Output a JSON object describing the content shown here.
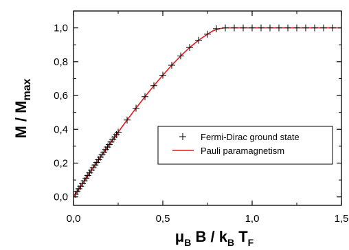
{
  "chart_data": {
    "type": "line",
    "xlabel_parts": {
      "mu": "μ",
      "sub_B": "B",
      "mid": " B / k",
      "sub_B2": "B",
      "T": " T",
      "sub_F": "F"
    },
    "ylabel_parts": {
      "main": "M / M",
      "sub": "max"
    },
    "xlim": [
      0,
      1.5
    ],
    "ylim": [
      -0.05,
      1.1
    ],
    "xticks": [
      {
        "v": 0.0,
        "label": "0,0"
      },
      {
        "v": 0.5,
        "label": "0,5"
      },
      {
        "v": 1.0,
        "label": "1,0"
      },
      {
        "v": 1.5,
        "label": "1,5"
      }
    ],
    "yticks": [
      {
        "v": 0.0,
        "label": "0,0"
      },
      {
        "v": 0.2,
        "label": "0,2"
      },
      {
        "v": 0.4,
        "label": "0,4"
      },
      {
        "v": 0.6,
        "label": "0,6"
      },
      {
        "v": 0.8,
        "label": "0,8"
      },
      {
        "v": 1.0,
        "label": "1,0"
      }
    ],
    "legend_position": "lower-right",
    "series": [
      {
        "name": "Fermi-Dirac ground state",
        "marker": "plus",
        "color": "#000000",
        "x": [
          0.0,
          0.01,
          0.02,
          0.03,
          0.04,
          0.05,
          0.06,
          0.07,
          0.08,
          0.09,
          0.1,
          0.11,
          0.12,
          0.13,
          0.14,
          0.15,
          0.16,
          0.17,
          0.18,
          0.19,
          0.2,
          0.21,
          0.22,
          0.23,
          0.24,
          0.25,
          0.3,
          0.35,
          0.4,
          0.45,
          0.5,
          0.55,
          0.6,
          0.65,
          0.7,
          0.75,
          0.8,
          0.85,
          0.9,
          0.95,
          1.0,
          1.05,
          1.1,
          1.15,
          1.2,
          1.25,
          1.3,
          1.35,
          1.4,
          1.45,
          1.5
        ],
        "y": [
          0.0,
          0.016,
          0.032,
          0.048,
          0.063,
          0.079,
          0.095,
          0.111,
          0.127,
          0.142,
          0.158,
          0.173,
          0.189,
          0.204,
          0.22,
          0.235,
          0.25,
          0.265,
          0.28,
          0.295,
          0.31,
          0.325,
          0.34,
          0.355,
          0.369,
          0.383,
          0.455,
          0.525,
          0.593,
          0.658,
          0.72,
          0.779,
          0.834,
          0.884,
          0.927,
          0.963,
          0.995,
          1.0,
          1.0,
          1.0,
          1.0,
          1.0,
          1.0,
          1.0,
          1.0,
          1.0,
          1.0,
          1.0,
          1.0,
          1.0,
          1.0
        ]
      },
      {
        "name": "Pauli paramagnetism",
        "marker": "line",
        "color": "#e31a1c",
        "x": [
          0.0,
          0.05,
          0.1,
          0.15,
          0.2,
          0.25,
          0.3,
          0.35,
          0.4,
          0.45,
          0.5,
          0.55,
          0.6,
          0.65,
          0.7,
          0.75,
          0.78,
          0.8,
          0.82,
          0.85,
          0.9,
          1.0,
          1.1,
          1.2,
          1.3,
          1.4,
          1.5
        ],
        "y": [
          0.0,
          0.079,
          0.158,
          0.235,
          0.31,
          0.383,
          0.455,
          0.525,
          0.593,
          0.658,
          0.72,
          0.779,
          0.834,
          0.884,
          0.927,
          0.963,
          0.982,
          0.99,
          0.996,
          1.0,
          1.0,
          1.0,
          1.0,
          1.0,
          1.0,
          1.0,
          1.0
        ]
      }
    ]
  }
}
